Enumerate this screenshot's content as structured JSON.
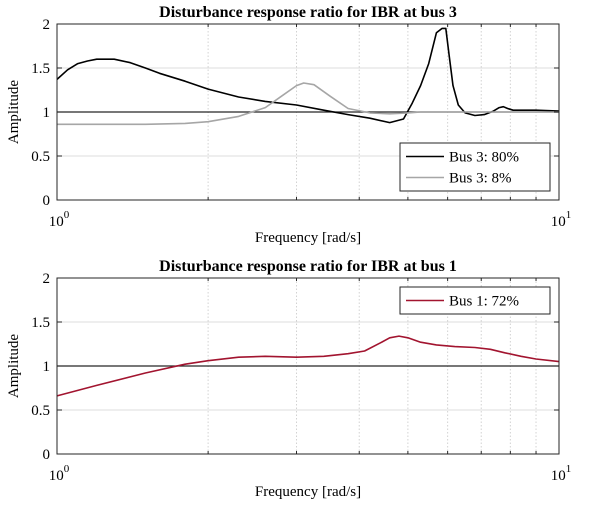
{
  "chart_data": [
    {
      "type": "line",
      "title": "Disturbance response ratio for IBR at bus 3",
      "xlabel": "Frequency [rad/s]",
      "ylabel": "Amplitude",
      "xscale": "log",
      "xlim": [
        1,
        10
      ],
      "ylim": [
        0,
        2
      ],
      "xticks": [
        {
          "base": "10",
          "exp": "0"
        },
        {
          "base": "10",
          "exp": "1"
        }
      ],
      "yticks": [
        "0",
        "0.5",
        "1",
        "1.5",
        "2"
      ],
      "reference_line": 1,
      "grid": "on",
      "legend_position": "bottom-right",
      "series": [
        {
          "name": "Bus 3: 80%",
          "color": "#000000",
          "x": [
            1.0,
            1.05,
            1.1,
            1.15,
            1.2,
            1.3,
            1.4,
            1.5,
            1.6,
            1.8,
            2.0,
            2.3,
            2.6,
            3.0,
            3.4,
            3.8,
            4.2,
            4.6,
            4.9,
            5.1,
            5.3,
            5.5,
            5.7,
            5.85,
            5.95,
            6.05,
            6.15,
            6.3,
            6.5,
            6.8,
            7.1,
            7.4,
            7.6,
            7.75,
            7.9,
            8.1,
            8.5,
            9.0,
            10.0
          ],
          "y": [
            1.37,
            1.48,
            1.55,
            1.58,
            1.6,
            1.6,
            1.56,
            1.5,
            1.44,
            1.35,
            1.26,
            1.17,
            1.12,
            1.08,
            1.02,
            0.97,
            0.93,
            0.88,
            0.92,
            1.1,
            1.3,
            1.55,
            1.9,
            1.95,
            1.95,
            1.62,
            1.3,
            1.08,
            0.99,
            0.96,
            0.97,
            1.01,
            1.05,
            1.06,
            1.04,
            1.02,
            1.02,
            1.02,
            1.01
          ]
        },
        {
          "name": "Bus 3: 8%",
          "color": "#a6a6a6",
          "x": [
            1.0,
            1.2,
            1.5,
            1.8,
            2.0,
            2.3,
            2.6,
            2.8,
            3.0,
            3.1,
            3.25,
            3.5,
            3.8,
            4.2,
            4.6,
            5.0,
            5.3,
            5.6,
            6.0,
            7.0,
            8.0,
            10.0
          ],
          "y": [
            0.86,
            0.86,
            0.86,
            0.87,
            0.89,
            0.95,
            1.05,
            1.18,
            1.3,
            1.33,
            1.31,
            1.18,
            1.04,
            0.99,
            0.98,
            0.99,
            1.0,
            1.0,
            1.0,
            1.0,
            1.0,
            1.0
          ]
        }
      ]
    },
    {
      "type": "line",
      "title": "Disturbance response ratio for IBR at bus 1",
      "xlabel": "Frequency [rad/s]",
      "ylabel": "Amplitude",
      "xscale": "log",
      "xlim": [
        1,
        10
      ],
      "ylim": [
        0,
        2
      ],
      "xticks": [
        {
          "base": "10",
          "exp": "0"
        },
        {
          "base": "10",
          "exp": "1"
        }
      ],
      "yticks": [
        "0",
        "0.5",
        "1",
        "1.5",
        "2"
      ],
      "reference_line": 1,
      "grid": "on",
      "legend_position": "top-right",
      "series": [
        {
          "name": "Bus 1: 72%",
          "color": "#a2142f",
          "x": [
            1.0,
            1.2,
            1.5,
            1.8,
            2.0,
            2.3,
            2.6,
            3.0,
            3.4,
            3.8,
            4.1,
            4.4,
            4.6,
            4.8,
            5.0,
            5.3,
            5.7,
            6.2,
            6.8,
            7.3,
            7.8,
            8.4,
            9.0,
            10.0
          ],
          "y": [
            0.66,
            0.78,
            0.92,
            1.02,
            1.06,
            1.1,
            1.11,
            1.1,
            1.11,
            1.14,
            1.17,
            1.26,
            1.32,
            1.34,
            1.32,
            1.27,
            1.24,
            1.22,
            1.21,
            1.19,
            1.15,
            1.11,
            1.08,
            1.05
          ]
        }
      ]
    }
  ]
}
